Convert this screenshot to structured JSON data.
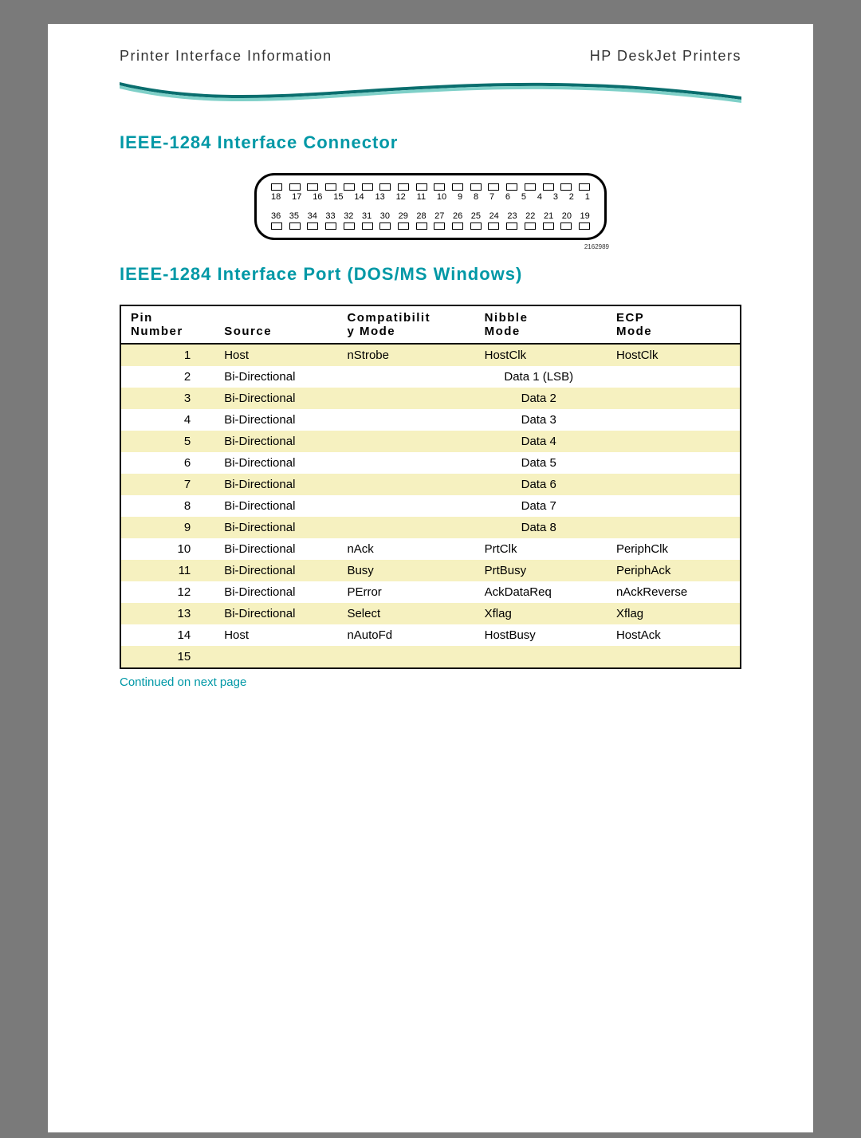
{
  "header": {
    "left": "Printer Interface Information",
    "right": "HP DeskJet Printers"
  },
  "section1_title": "IEEE-1284  Interface  Connector",
  "section2_title": "IEEE-1284  Interface  Port  (DOS/MS  Windows)",
  "connector": {
    "top_pins": [
      "18",
      "17",
      "16",
      "15",
      "14",
      "13",
      "12",
      "11",
      "10",
      "9",
      "8",
      "7",
      "6",
      "5",
      "4",
      "3",
      "2",
      "1"
    ],
    "bottom_pins": [
      "36",
      "35",
      "34",
      "33",
      "32",
      "31",
      "30",
      "29",
      "28",
      "27",
      "26",
      "25",
      "24",
      "23",
      "22",
      "21",
      "20",
      "19"
    ],
    "caption": "2162989"
  },
  "table": {
    "columns": {
      "pin": {
        "line1": "Pin",
        "line2": "Number"
      },
      "source": {
        "line1": "",
        "line2": "Source"
      },
      "compat": {
        "line1": "Compatibilit",
        "line2": "y  Mode"
      },
      "nibble": {
        "line1": "Nibble",
        "line2": "Mode"
      },
      "ecp": {
        "line1": "ECP",
        "line2": "Mode"
      }
    },
    "rows": [
      {
        "pin": "1",
        "source": "Host",
        "compat": "nStrobe",
        "nibble": "HostClk",
        "ecp": "HostClk",
        "span3": false
      },
      {
        "pin": "2",
        "source": "Bi-Directional",
        "span3": true,
        "span_text": "Data 1 (LSB)"
      },
      {
        "pin": "3",
        "source": "Bi-Directional",
        "span3": true,
        "span_text": "Data 2"
      },
      {
        "pin": "4",
        "source": "Bi-Directional",
        "span3": true,
        "span_text": "Data 3"
      },
      {
        "pin": "5",
        "source": "Bi-Directional",
        "span3": true,
        "span_text": "Data 4"
      },
      {
        "pin": "6",
        "source": "Bi-Directional",
        "span3": true,
        "span_text": "Data 5"
      },
      {
        "pin": "7",
        "source": "Bi-Directional",
        "span3": true,
        "span_text": "Data 6"
      },
      {
        "pin": "8",
        "source": "Bi-Directional",
        "span3": true,
        "span_text": "Data 7"
      },
      {
        "pin": "9",
        "source": "Bi-Directional",
        "span3": true,
        "span_text": "Data 8"
      },
      {
        "pin": "10",
        "source": "Bi-Directional",
        "compat": "nAck",
        "nibble": "PrtClk",
        "ecp": "PeriphClk",
        "span3": false
      },
      {
        "pin": "11",
        "source": "Bi-Directional",
        "compat": "Busy",
        "nibble": "PrtBusy",
        "ecp": "PeriphAck",
        "span3": false
      },
      {
        "pin": "12",
        "source": "Bi-Directional",
        "compat": "PError",
        "nibble": "AckDataReq",
        "ecp": "nAckReverse",
        "span3": false
      },
      {
        "pin": "13",
        "source": "Bi-Directional",
        "compat": "Select",
        "nibble": "Xflag",
        "ecp": "Xflag",
        "span3": false
      },
      {
        "pin": "14",
        "source": "Host",
        "compat": "nAutoFd",
        "nibble": "HostBusy",
        "ecp": "HostAck",
        "span3": false
      },
      {
        "pin": "15",
        "source": "",
        "compat": "",
        "nibble": "",
        "ecp": "",
        "span3": false
      }
    ],
    "row_odd_bg": "#f6f1c0",
    "row_even_bg": "#ffffff"
  },
  "continued_text": "Continued on next page",
  "colors": {
    "heading": "#0098a6",
    "swoosh_dark": "#0a6e6e",
    "swoosh_light": "#7fd0c8"
  }
}
